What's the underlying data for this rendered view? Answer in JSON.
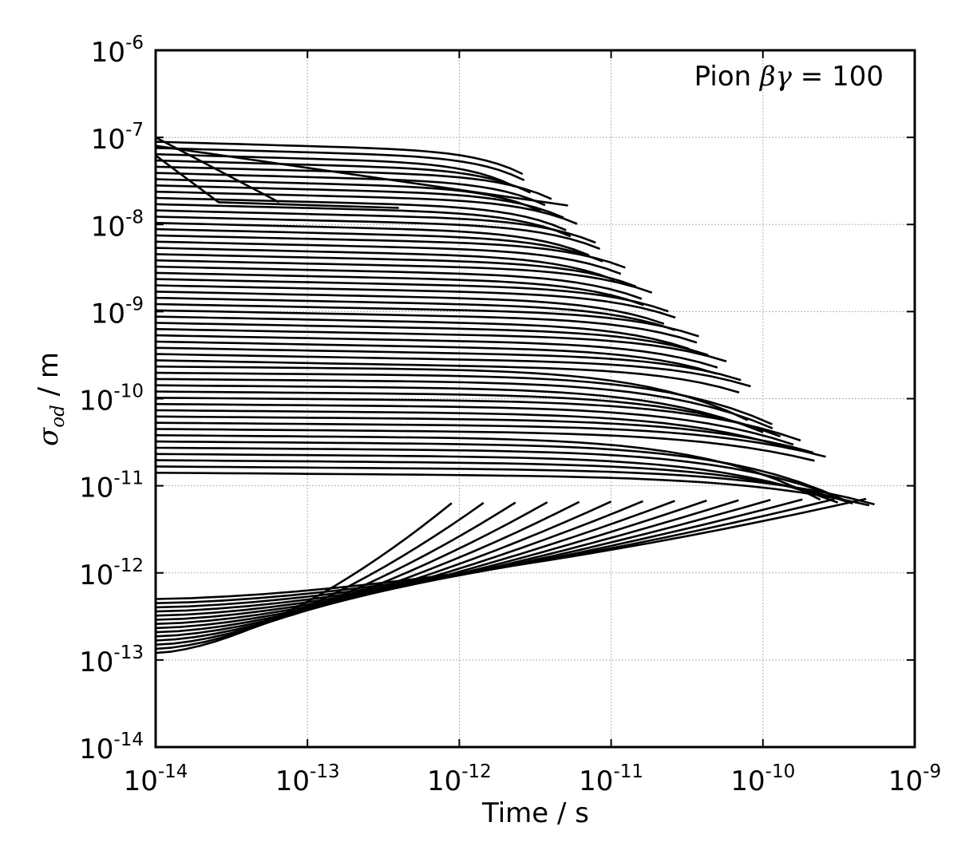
{
  "chart_data": {
    "type": "line",
    "x_scale": "log",
    "y_scale": "log",
    "xlim": [
      1e-14,
      1e-09
    ],
    "ylim": [
      1e-14,
      1e-06
    ],
    "grid": true,
    "legend": "none",
    "xlabel": "Time / s",
    "ylabel_symbol": "σ",
    "ylabel_subscript": "od",
    "ylabel_unit": " / m",
    "annotation": {
      "prefix": "Pion ",
      "symbol": "βγ",
      "suffix": " = 100"
    },
    "x_ticks": [
      {
        "base": "10",
        "exp": "-14",
        "value": 1e-14
      },
      {
        "base": "10",
        "exp": "-13",
        "value": 1e-13
      },
      {
        "base": "10",
        "exp": "-12",
        "value": 1e-12
      },
      {
        "base": "10",
        "exp": "-11",
        "value": 1e-11
      },
      {
        "base": "10",
        "exp": "-10",
        "value": 1e-10
      },
      {
        "base": "10",
        "exp": "-9",
        "value": 1e-09
      }
    ],
    "y_ticks": [
      {
        "base": "10",
        "exp": "-14",
        "value": 1e-14
      },
      {
        "base": "10",
        "exp": "-13",
        "value": 1e-13
      },
      {
        "base": "10",
        "exp": "-12",
        "value": 1e-12
      },
      {
        "base": "10",
        "exp": "-11",
        "value": 1e-11
      },
      {
        "base": "10",
        "exp": "-10",
        "value": 1e-10
      },
      {
        "base": "10",
        "exp": "-9",
        "value": 1e-09
      },
      {
        "base": "10",
        "exp": "-8",
        "value": 1e-08
      },
      {
        "base": "10",
        "exp": "-7",
        "value": 1e-07
      },
      {
        "base": "10",
        "exp": "-6",
        "value": 1e-06
      }
    ],
    "line_color": "#000000",
    "series_generation": {
      "flat_series": {
        "count": 54,
        "log_y_start_range": [
          -10.85,
          -7.05
        ],
        "log_x_end_range": [
          -11.65,
          -9.3
        ]
      },
      "rising_series": {
        "count": 14,
        "log_y_start_range": [
          -12.92,
          -12.3
        ],
        "log_x_end_range": [
          -12.05,
          -9.32
        ],
        "log_y_end": -11.2
      },
      "top_diagonals": [
        {
          "x": [
            1e-14,
            6.5e-14
          ],
          "y": [
            1e-07,
            1.8e-08
          ]
        },
        {
          "x": [
            1e-14,
            2.6e-14,
            4e-13
          ],
          "y": [
            6.2e-08,
            1.8e-08,
            1.55e-08
          ]
        },
        {
          "x": [
            1e-14,
            5.2e-12
          ],
          "y": [
            8e-08,
            1.65e-08
          ]
        }
      ]
    }
  }
}
